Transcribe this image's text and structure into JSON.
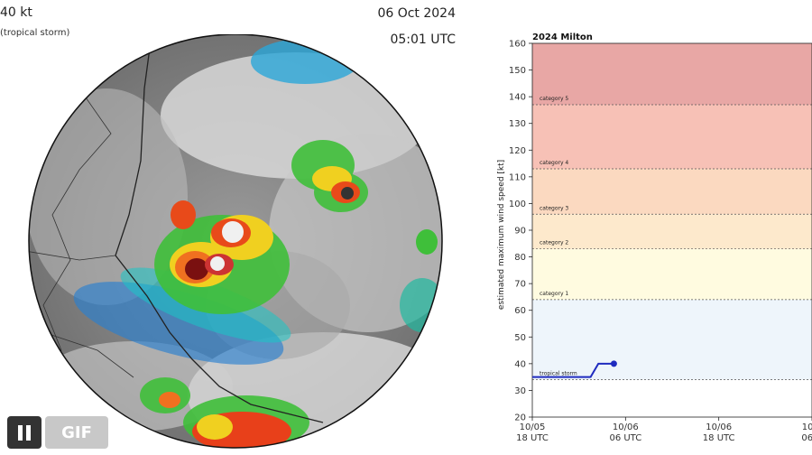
{
  "header": {
    "intensity": "40 kt",
    "stage": "(tropical storm)",
    "date": "06 Oct 2024",
    "time": "05:01 UTC"
  },
  "controls": {
    "pause_icon": "pause-icon",
    "gif_label": "GIF"
  },
  "colors": {
    "track": "#1f2bbf",
    "cat5": "#e8a7a5",
    "cat4": "#f7c1b6",
    "cat3": "#fbd9c0",
    "cat2": "#fde9cc",
    "cat1": "#fffbe0",
    "ts": "#eef5fb"
  },
  "chart_data": {
    "type": "line",
    "title": "2024 Milton",
    "ylabel": "estimated maximum wind speed [kt]",
    "xlabel": "",
    "ylim": [
      20,
      160
    ],
    "yticks": [
      20,
      30,
      40,
      50,
      60,
      70,
      80,
      90,
      100,
      110,
      120,
      130,
      140,
      150,
      160
    ],
    "xticks": [
      {
        "label1": "10/05",
        "label2": "18 UTC",
        "hours": 0
      },
      {
        "label1": "10/06",
        "label2": "06 UTC",
        "hours": 12
      },
      {
        "label1": "10/06",
        "label2": "18 UTC",
        "hours": 24
      },
      {
        "label1": "10/0",
        "label2": "06 U",
        "hours": 36
      }
    ],
    "xlim_hours": [
      0,
      36
    ],
    "bands": [
      {
        "name": "tropical storm",
        "from": 34,
        "to": 64
      },
      {
        "name": "category 1",
        "from": 64,
        "to": 83
      },
      {
        "name": "category 2",
        "from": 83,
        "to": 96
      },
      {
        "name": "category 3",
        "from": 96,
        "to": 113
      },
      {
        "name": "category 4",
        "from": 113,
        "to": 137
      },
      {
        "name": "category 5",
        "from": 137,
        "to": 160
      }
    ],
    "series": [
      {
        "hours": [
          0,
          6,
          7.5,
          8.5,
          10.5
        ],
        "values": [
          35,
          35,
          35,
          40,
          40
        ]
      }
    ],
    "current_point": {
      "hours": 10.5,
      "value": 40
    },
    "grid": false
  }
}
